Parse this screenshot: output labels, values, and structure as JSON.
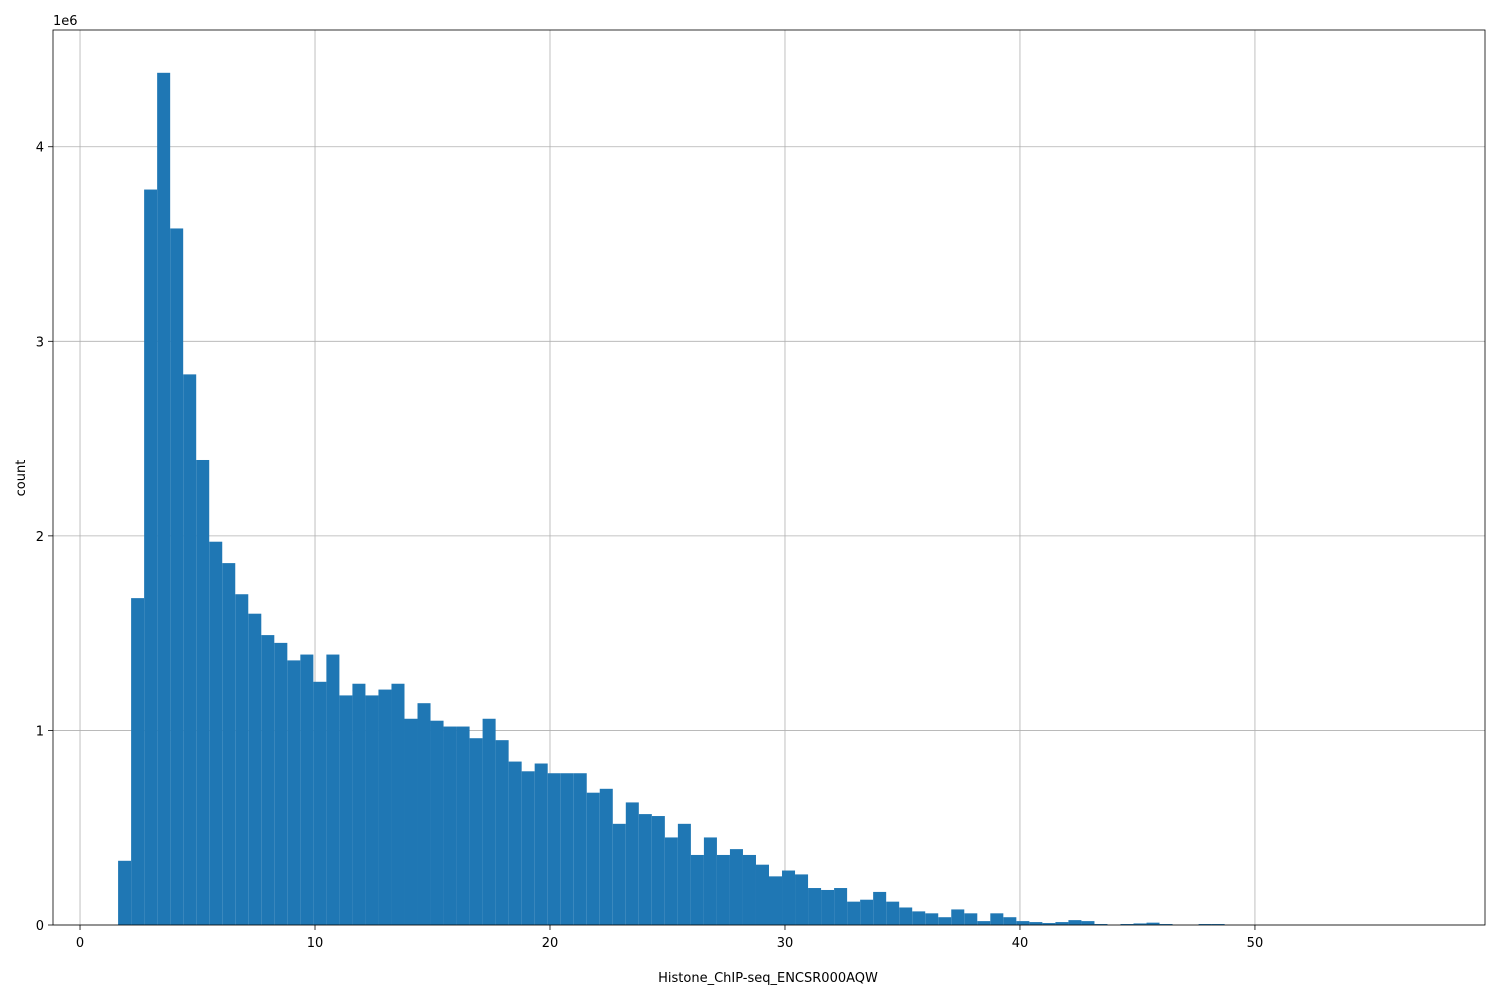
{
  "chart_data": {
    "type": "histogram",
    "x_label": "Histone_ChIP-seq_ENCSR000AQW",
    "y_label": "count",
    "y_offset_label": "1e6",
    "color": "#1f77b4",
    "grid": true,
    "bins": [
      1.62,
      2.174,
      2.728,
      3.282,
      3.836,
      4.39,
      4.944,
      5.498,
      6.052,
      6.606,
      7.16,
      7.714,
      8.268,
      8.822,
      9.376,
      9.93,
      10.484,
      11.038,
      11.592,
      12.146,
      12.7,
      13.254,
      13.808,
      14.362,
      14.916,
      15.47,
      16.024,
      16.578,
      17.132,
      17.686,
      18.24,
      18.794,
      19.348,
      19.902,
      20.456,
      21.01,
      21.564,
      22.118,
      22.672,
      23.226,
      23.78,
      24.334,
      24.888,
      25.442,
      25.996,
      26.55,
      27.104,
      27.658,
      28.212,
      28.766,
      29.32,
      29.874,
      30.428,
      30.982,
      31.536,
      32.09,
      32.644,
      33.198,
      33.752,
      34.306,
      34.86,
      35.414,
      35.968,
      36.522,
      37.076,
      37.63,
      38.184,
      38.738,
      39.292,
      39.846,
      40.4,
      40.954,
      41.508,
      42.062,
      42.616,
      43.17,
      43.724,
      44.278,
      44.832,
      45.386,
      45.94,
      46.494,
      47.048,
      47.602,
      48.156,
      48.71,
      49.264,
      49.818,
      50.372,
      50.926,
      51.48,
      52.034,
      52.588,
      53.142,
      53.696,
      54.25,
      54.804,
      55.358,
      55.912,
      56.466,
      57.02
    ],
    "counts": [
      330000,
      1680000,
      3780000,
      4380000,
      3580000,
      2830000,
      2390000,
      1970000,
      1860000,
      1700000,
      1600000,
      1490000,
      1450000,
      1360000,
      1390000,
      1250000,
      1390000,
      1180000,
      1240000,
      1180000,
      1210000,
      1240000,
      1060000,
      1140000,
      1050000,
      1020000,
      1020000,
      960000,
      1060000,
      950000,
      840000,
      790000,
      830000,
      780000,
      780000,
      780000,
      680000,
      700000,
      520000,
      630000,
      570000,
      560000,
      450000,
      520000,
      360000,
      450000,
      360000,
      390000,
      360000,
      310000,
      250000,
      280000,
      260000,
      190000,
      180000,
      190000,
      120000,
      130000,
      170000,
      120000,
      90000,
      70000,
      60000,
      40000,
      80000,
      60000,
      20000,
      60000,
      40000,
      20000,
      15000,
      10000,
      15000,
      25000,
      20000,
      5000,
      0,
      5000,
      8000,
      12000,
      5000,
      0,
      0,
      5000,
      5000,
      0,
      0,
      0,
      0,
      0,
      0,
      0,
      0,
      0,
      0,
      0,
      0,
      0,
      0,
      0
    ],
    "xlim": [
      -1.15,
      59.79
    ],
    "xticks": [
      0,
      10,
      20,
      30,
      40,
      50
    ],
    "ylim": [
      0,
      4600000
    ],
    "yticks": [
      0,
      {
        "value": 1000000,
        "label": "1"
      },
      {
        "value": 2000000,
        "label": "2"
      },
      {
        "value": 3000000,
        "label": "3"
      },
      {
        "value": 4000000,
        "label": "4"
      }
    ]
  }
}
